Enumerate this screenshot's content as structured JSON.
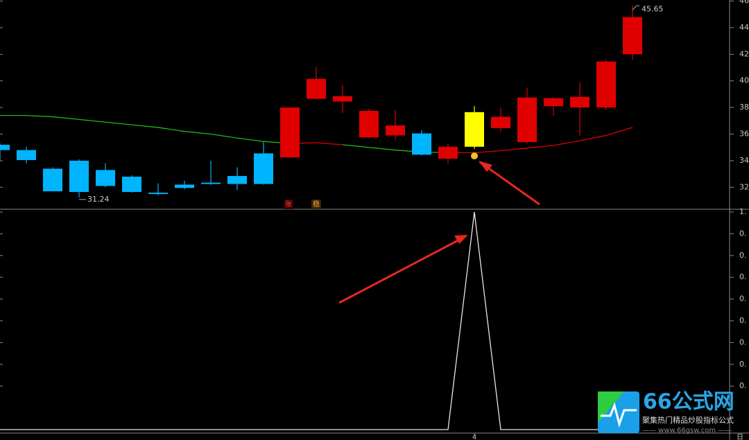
{
  "chart_data": [
    {
      "type": "candlestick",
      "open": [
        35.2,
        34.8,
        33.4,
        34.0,
        33.3,
        32.8,
        31.6,
        32.2,
        32.35,
        32.85,
        34.55,
        34.25,
        38.65,
        38.45,
        35.75,
        35.9,
        36.05,
        34.15,
        35.05,
        36.45,
        35.4,
        38.1,
        38.0,
        38.0,
        42.0
      ],
      "close": [
        34.8,
        34.05,
        31.7,
        31.65,
        32.1,
        31.65,
        31.5,
        31.95,
        32.25,
        32.25,
        32.25,
        38.0,
        40.15,
        38.85,
        37.75,
        36.65,
        34.45,
        35.05,
        37.65,
        37.3,
        38.75,
        38.7,
        38.8,
        41.45,
        44.8
      ],
      "high": [
        35.3,
        35.05,
        33.5,
        34.1,
        33.8,
        32.9,
        32.3,
        32.5,
        34.0,
        33.5,
        35.4,
        38.0,
        41.05,
        39.7,
        37.9,
        37.8,
        36.3,
        35.3,
        38.1,
        38.0,
        39.45,
        38.8,
        39.9,
        41.6,
        45.65
      ],
      "low": [
        34.0,
        33.8,
        31.7,
        31.24,
        32.0,
        31.6,
        31.4,
        31.85,
        32.2,
        31.8,
        32.2,
        34.2,
        38.6,
        37.6,
        35.7,
        35.6,
        34.4,
        33.8,
        34.9,
        36.2,
        35.3,
        37.4,
        35.9,
        37.8,
        41.6
      ],
      "colors": [
        "#00b4ff",
        "#00b4ff",
        "#00b4ff",
        "#00b4ff",
        "#00b4ff",
        "#00b4ff",
        "#00b4ff",
        "#00b4ff",
        "#00b4ff",
        "#00b4ff",
        "#00b4ff",
        "#e00000",
        "#e00000",
        "#e00000",
        "#e00000",
        "#e00000",
        "#00b4ff",
        "#e00000",
        "#ffff00",
        "#e00000",
        "#e00000",
        "#e00000",
        "#e00000",
        "#e00000",
        "#e00000"
      ],
      "series": [
        {
          "color": "#1fb81f",
          "values": [
            37.4,
            37.4,
            37.3,
            37.1,
            36.9,
            36.7,
            36.5,
            36.2,
            36.0,
            35.7,
            35.45,
            35.3,
            null,
            35.2,
            35.0,
            34.8,
            34.65,
            34.6,
            null,
            null,
            null,
            null,
            null,
            null,
            null
          ]
        },
        {
          "color": "#e00000",
          "values": [
            null,
            null,
            null,
            null,
            null,
            null,
            null,
            null,
            null,
            null,
            null,
            35.3,
            35.35,
            35.2,
            null,
            null,
            null,
            34.6,
            34.6,
            34.75,
            34.95,
            35.15,
            35.5,
            35.9,
            36.5
          ]
        }
      ],
      "ylim": [
        30.35,
        46.08
      ],
      "yticks": [
        {
          "value": 32,
          "label": "32."
        },
        {
          "value": 34,
          "label": "34."
        },
        {
          "value": 36,
          "label": "36."
        },
        {
          "value": 38,
          "label": "38."
        },
        {
          "value": 40,
          "label": "40."
        },
        {
          "value": 42,
          "label": "42."
        },
        {
          "value": 44,
          "label": "44."
        },
        {
          "value": 46,
          "label": "46."
        }
      ],
      "signals": [
        "张",
        "稳"
      ]
    },
    {
      "type": "line",
      "categories": [
        null,
        null,
        null,
        null,
        null,
        null,
        null,
        null,
        null,
        null,
        null,
        null,
        null,
        null,
        null,
        null,
        null,
        null,
        "4",
        null,
        null,
        null,
        null,
        null,
        null
      ],
      "series": [
        {
          "color": "#e8e8e8",
          "values": [
            0,
            0,
            0,
            0,
            0,
            0,
            0,
            0,
            0,
            0,
            0,
            0,
            0,
            0,
            0,
            0,
            0,
            0,
            1,
            0,
            0,
            0,
            0,
            0,
            0
          ]
        }
      ],
      "ylim": [
        0,
        1
      ],
      "yticks": [
        {
          "value": 0.2,
          "label": "0."
        },
        {
          "value": 0.3,
          "label": "0."
        },
        {
          "value": 0.4,
          "label": "0."
        },
        {
          "value": 0.5,
          "label": "0."
        },
        {
          "value": 0.6,
          "label": "0."
        },
        {
          "value": 0.7,
          "label": "0."
        },
        {
          "value": 0.8,
          "label": "0."
        },
        {
          "value": 0.9,
          "label": "0."
        },
        {
          "value": 1,
          "label": "1."
        }
      ],
      "period": "日"
    }
  ],
  "watermark": {
    "name": "66公式网",
    "slogan": "聚集热门精品炒股指标公式",
    "url": "—— www.66gsw.com ——"
  }
}
